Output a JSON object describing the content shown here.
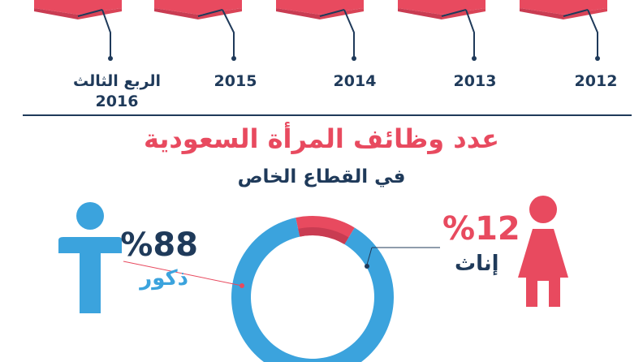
{
  "timeline": {
    "years": [
      "الربع الثالث",
      "2016",
      "2015",
      "2014",
      "2013",
      "2012"
    ]
  },
  "header": {
    "title": "عدد وظائف المرأة السعودية",
    "subtitle": "في القطاع الخاص"
  },
  "colors": {
    "male": "#3ba3dd",
    "female": "#e84a5f",
    "navy": "#1f3a5a"
  },
  "icons": {
    "male": "male-person-icon",
    "female": "female-person-icon"
  },
  "chart_data": {
    "type": "pie",
    "style": "donut",
    "slices": [
      {
        "label": "ذكور",
        "value": 88,
        "display": "%88",
        "color": "#3ba3dd"
      },
      {
        "label": "إناث",
        "value": 12,
        "display": "%12",
        "color": "#e84a5f"
      }
    ]
  }
}
